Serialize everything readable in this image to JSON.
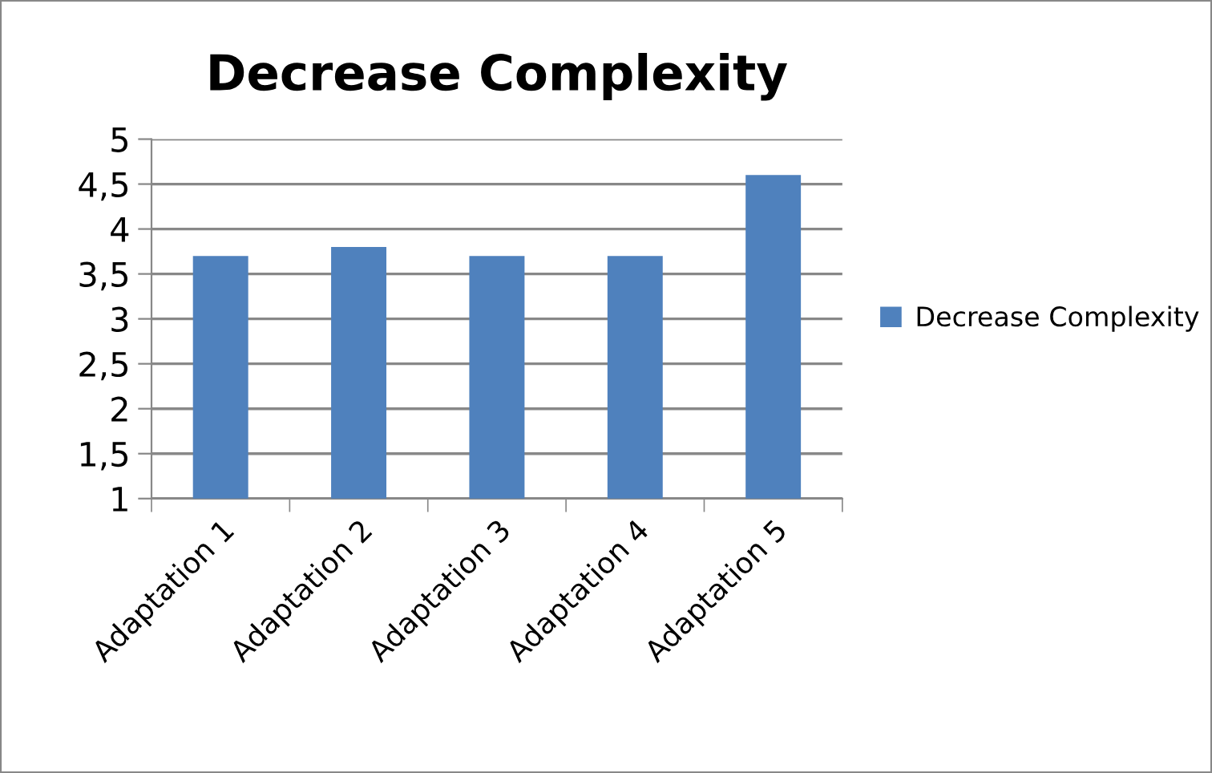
{
  "chart_data": {
    "type": "bar",
    "title": "Decrease Complexity",
    "categories": [
      "Adaptation 1",
      "Adaptation 2",
      "Adaptation 3",
      "Adaptation 4",
      "Adaptation 5"
    ],
    "series": [
      {
        "name": "Decrease Complexity",
        "color": "#4f81bd",
        "values": [
          3.7,
          3.8,
          3.7,
          3.7,
          4.6
        ]
      }
    ],
    "ylim": [
      1,
      5
    ],
    "yticks": [
      1,
      {
        "value": 1.5,
        "label": "1,5"
      },
      2,
      {
        "value": 2.5,
        "label": "2,5"
      },
      3,
      {
        "value": 3.5,
        "label": "3,5"
      },
      4,
      {
        "value": 4.5,
        "label": "4,5"
      },
      5
    ],
    "grid": "y",
    "legend": "right"
  }
}
